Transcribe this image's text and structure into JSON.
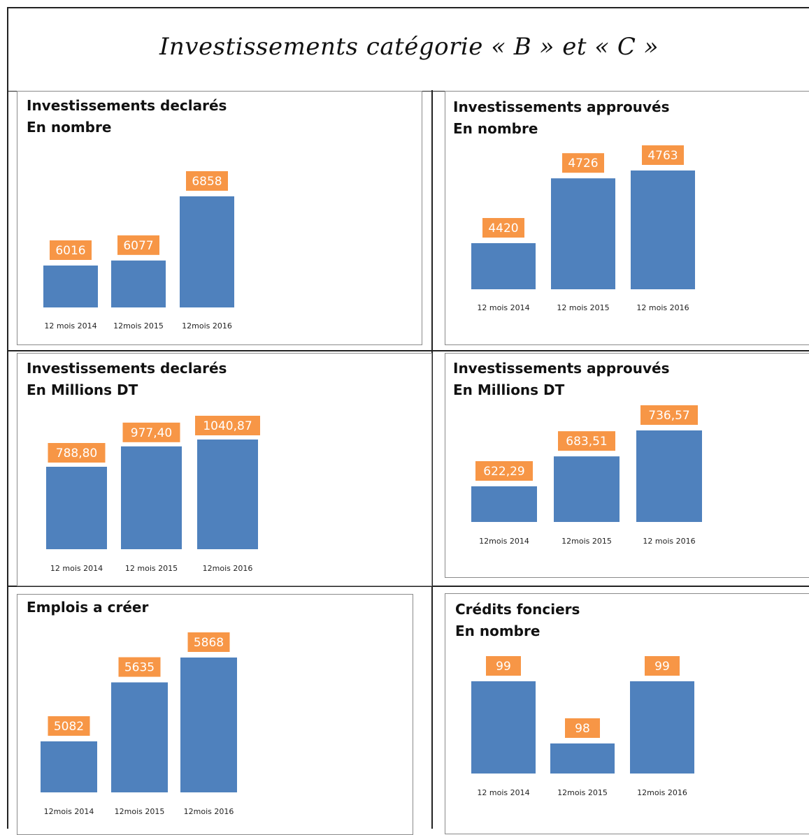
{
  "page": {
    "title": "Investissements catégorie « B » et « C »"
  },
  "colors": {
    "bar": "#4f81bd",
    "data_label_bg": "#f79646",
    "data_label_text": "#ffffff",
    "frame": "#222222",
    "panel_border": "#8a8a8a"
  },
  "chart_data": [
    {
      "type": "bar",
      "title": "Investissements declarés\nEn nombre",
      "categories": [
        "12 mois 2014",
        "12mois 2015",
        "12mois 2016"
      ],
      "values": [
        6016,
        6077,
        6858
      ],
      "value_labels": [
        "6016",
        "6077",
        "6858"
      ],
      "data_labels": true,
      "grid": false,
      "legend": "none"
    },
    {
      "type": "bar",
      "title": "Investissements approuvés\nEn nombre",
      "categories": [
        "12 mois 2014",
        "12 mois 2015",
        "12 mois 2016"
      ],
      "values": [
        4420,
        4726,
        4763
      ],
      "value_labels": [
        "4420",
        "4726",
        "4763"
      ],
      "data_labels": true,
      "grid": false,
      "legend": "none"
    },
    {
      "type": "bar",
      "title": "Investissements declarés\nEn Millions DT",
      "categories": [
        "12 mois 2014",
        "12 mois 2015",
        "12mois 2016"
      ],
      "values": [
        788.8,
        977.4,
        1040.87
      ],
      "value_labels": [
        "788,80",
        "977,40",
        "1040,87"
      ],
      "data_labels": true,
      "grid": false,
      "legend": "none"
    },
    {
      "type": "bar",
      "title": "Investissements approuvés\nEn Millions DT",
      "categories": [
        "12mois 2014",
        "12mois 2015",
        "12 mois 2016"
      ],
      "values": [
        622.29,
        683.51,
        736.57
      ],
      "value_labels": [
        "622,29",
        "683,51",
        "736,57"
      ],
      "data_labels": true,
      "grid": false,
      "legend": "none"
    },
    {
      "type": "bar",
      "title": "Emplois a créer",
      "categories": [
        "12mois 2014",
        "12mois 2015",
        "12mois 2016"
      ],
      "values": [
        5082,
        5635,
        5868
      ],
      "value_labels": [
        "5082",
        "5635",
        "5868"
      ],
      "data_labels": true,
      "grid": false,
      "legend": "none"
    },
    {
      "type": "bar",
      "title": "Crédits fonciers\nEn nombre",
      "categories": [
        "12 mois 2014",
        "12mois 2015",
        "12mois 2016"
      ],
      "values": [
        99,
        98,
        99
      ],
      "value_labels": [
        "99",
        "98",
        "99"
      ],
      "data_labels": true,
      "grid": false,
      "legend": "none"
    }
  ]
}
